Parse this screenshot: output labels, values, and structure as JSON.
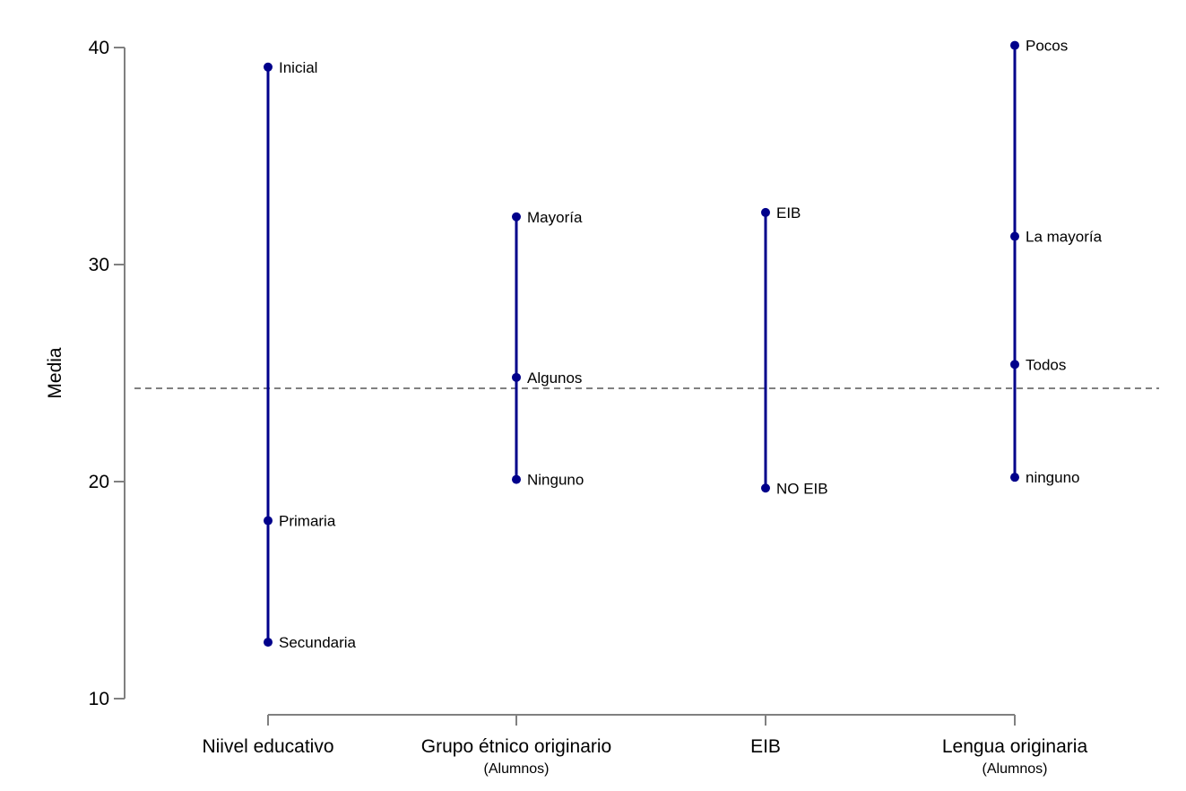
{
  "chart_data": {
    "type": "scatter",
    "title": "",
    "xlabel": "",
    "ylabel": "Media",
    "ylim": [
      10,
      40
    ],
    "yticks": [
      10,
      20,
      30,
      40
    ],
    "grid": false,
    "reference_line": 24.3,
    "colors": {
      "series": "#00008B",
      "axis": "#808080",
      "reference": "#808080"
    },
    "groups": [
      {
        "name": "Niivel educativo",
        "subtitle": "",
        "points": [
          {
            "label": "Inicial",
            "value": 39.1
          },
          {
            "label": "Primaria",
            "value": 18.2
          },
          {
            "label": "Secundaria",
            "value": 12.6
          }
        ]
      },
      {
        "name": "Grupo étnico originario",
        "subtitle": "(Alumnos)",
        "points": [
          {
            "label": "Mayoría",
            "value": 32.2
          },
          {
            "label": "Algunos",
            "value": 24.8
          },
          {
            "label": "Ninguno",
            "value": 20.1
          }
        ]
      },
      {
        "name": "EIB",
        "subtitle": "",
        "points": [
          {
            "label": "EIB",
            "value": 32.4
          },
          {
            "label": "NO EIB",
            "value": 19.7
          }
        ]
      },
      {
        "name": "Lengua originaria",
        "subtitle": "(Alumnos)",
        "points": [
          {
            "label": "Pocos",
            "value": 40.1
          },
          {
            "label": "La mayoría",
            "value": 31.3
          },
          {
            "label": "Todos",
            "value": 25.4
          },
          {
            "label": "ninguno",
            "value": 20.2
          }
        ]
      }
    ]
  }
}
